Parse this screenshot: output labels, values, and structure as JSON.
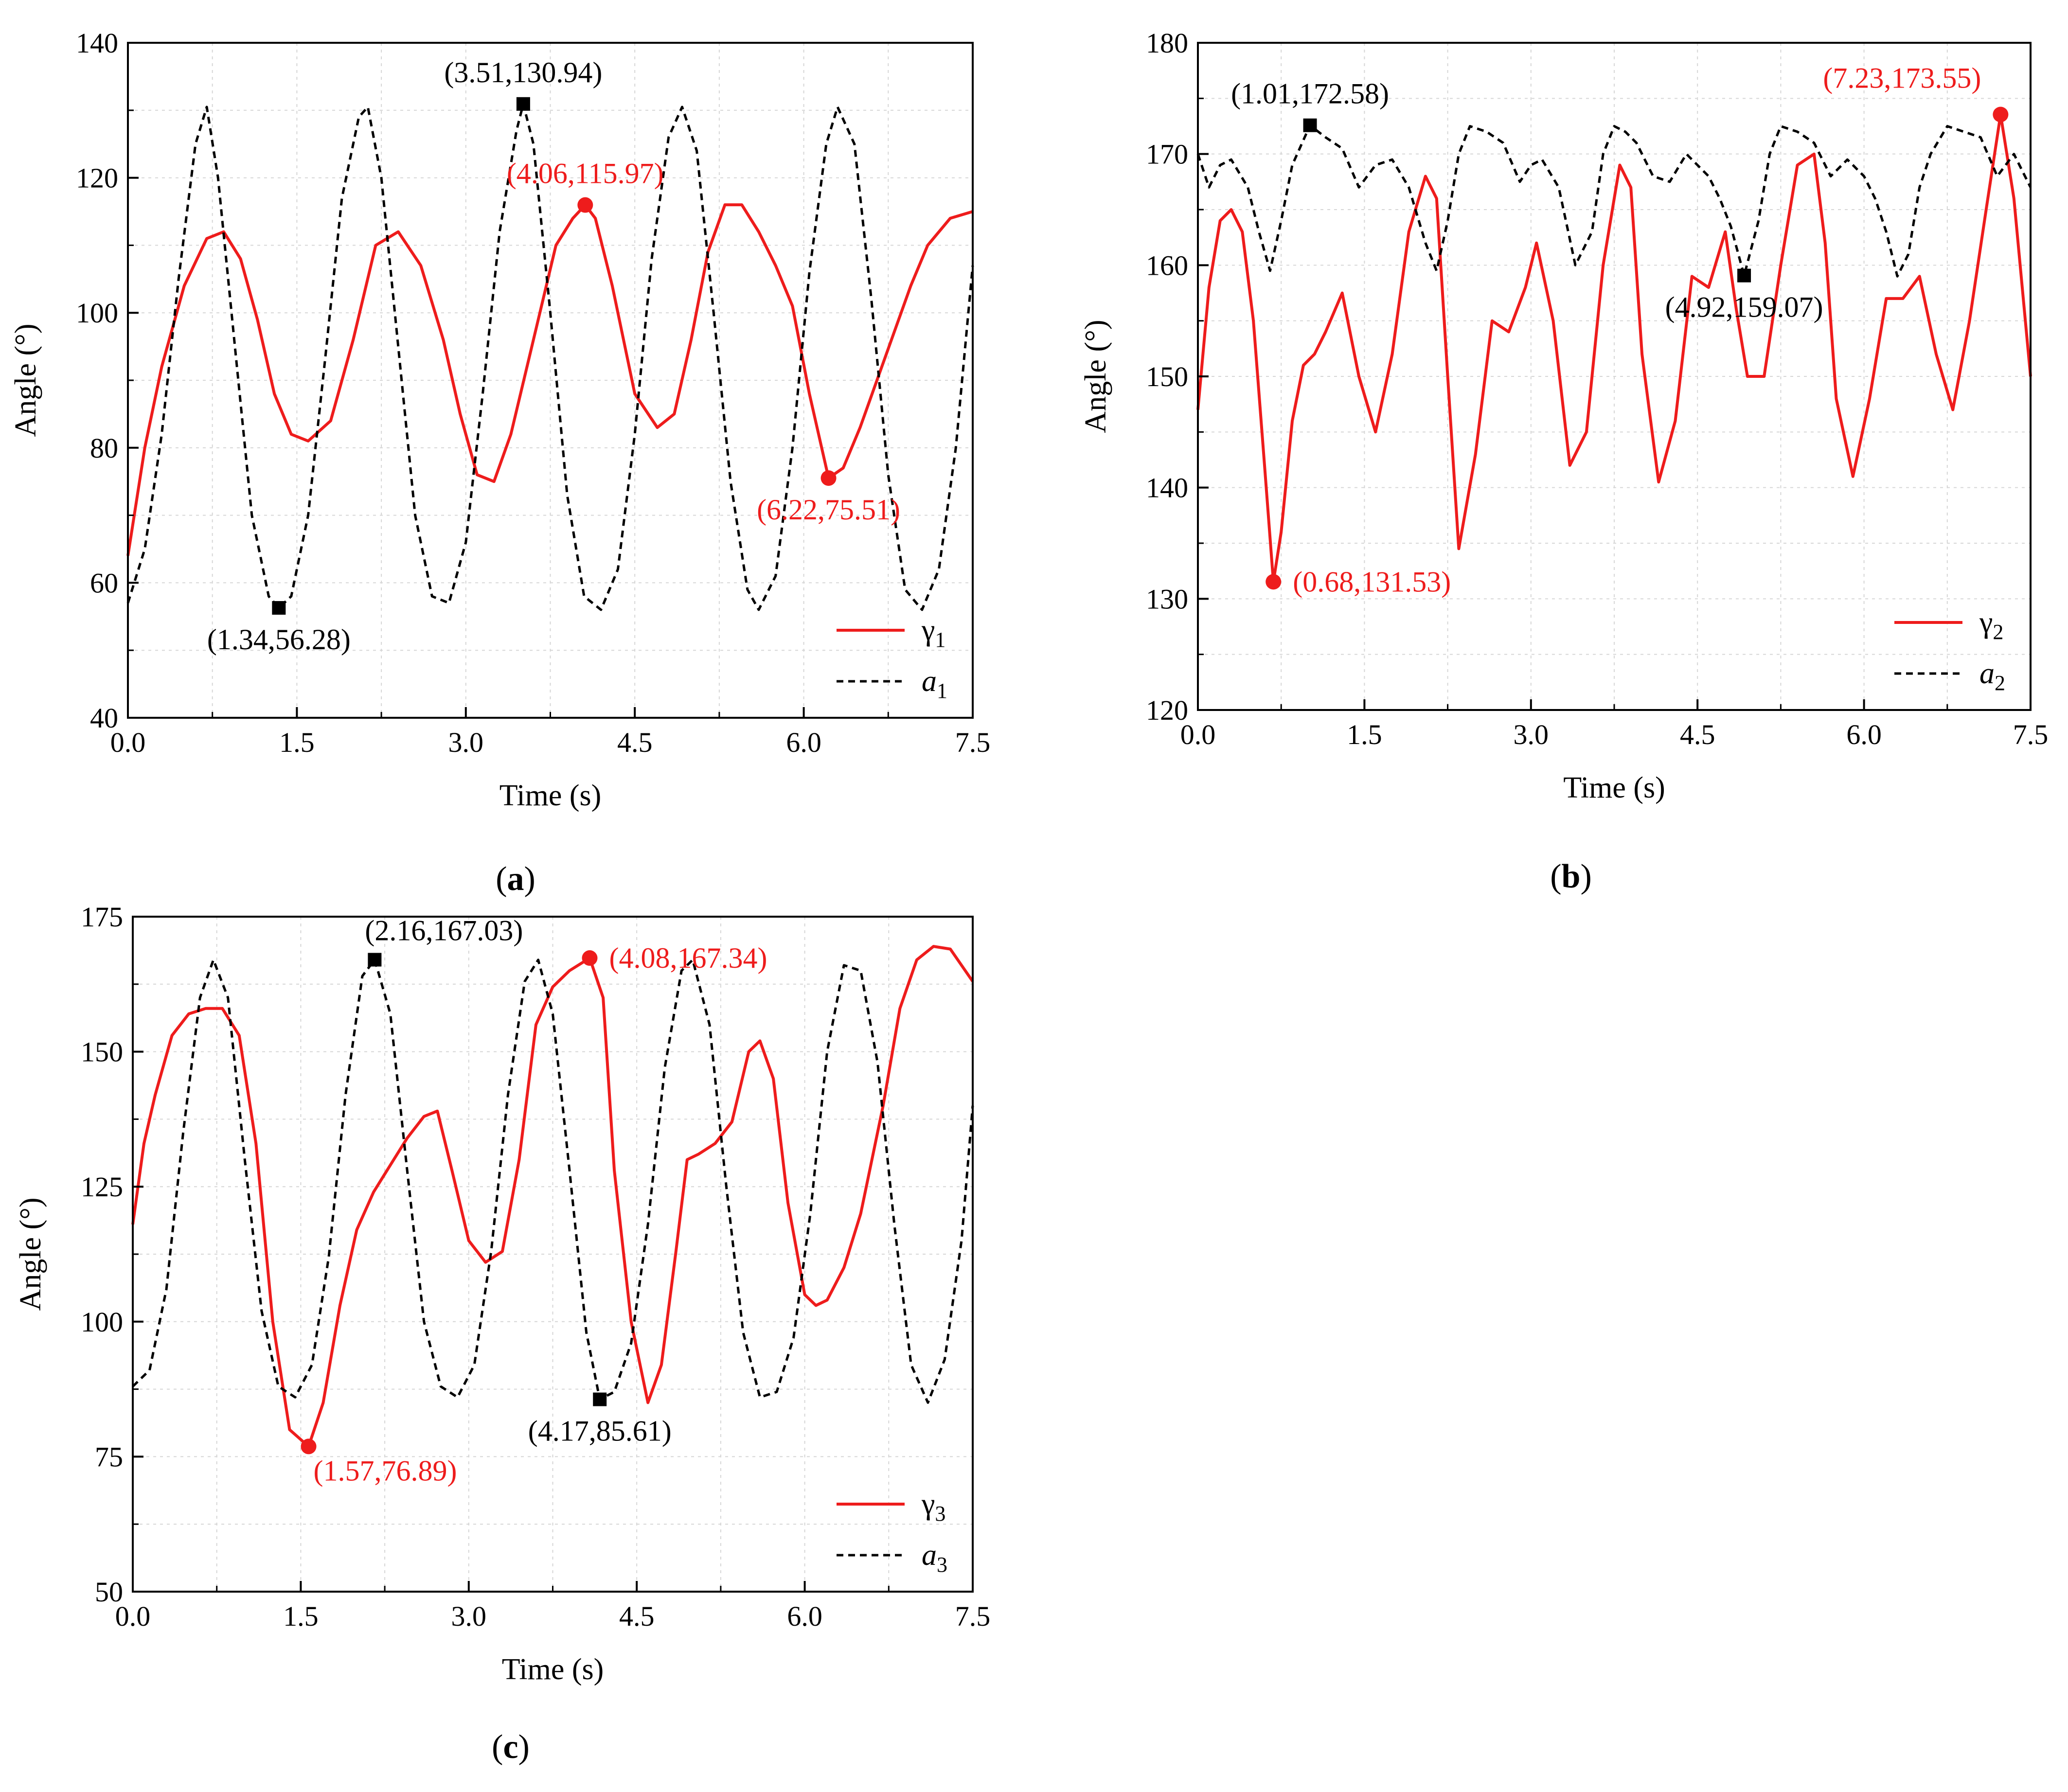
{
  "colors": {
    "red": "#ee1c1c",
    "black": "#000000",
    "grid": "#d6d6d6"
  },
  "chart_data": [
    {
      "type": "line",
      "panel_label": "a",
      "xlabel": "Time (s)",
      "ylabel": "Angle (°)",
      "xlim": [
        0,
        7.5
      ],
      "ylim": [
        40,
        140
      ],
      "xticks": [
        "0.0",
        "1.5",
        "3.0",
        "4.5",
        "6.0",
        "7.5"
      ],
      "yticks": [
        "40",
        "60",
        "80",
        "100",
        "120",
        "140"
      ],
      "series": [
        {
          "name": "γ1",
          "legend_symbol": "γ",
          "legend_sub": "1",
          "style": "solid",
          "color": "#ee1c1c",
          "x": [
            0,
            0.15,
            0.3,
            0.5,
            0.7,
            0.85,
            1.0,
            1.15,
            1.3,
            1.45,
            1.6,
            1.8,
            2.0,
            2.2,
            2.4,
            2.6,
            2.8,
            2.95,
            3.1,
            3.25,
            3.4,
            3.6,
            3.8,
            3.95,
            4.06,
            4.15,
            4.3,
            4.5,
            4.7,
            4.85,
            5.0,
            5.15,
            5.3,
            5.45,
            5.6,
            5.75,
            5.9,
            6.05,
            6.22,
            6.35,
            6.5,
            6.65,
            6.8,
            6.95,
            7.1,
            7.3,
            7.5
          ],
          "y": [
            64,
            80,
            92,
            104,
            111,
            112,
            108,
            99,
            88,
            82,
            81,
            84,
            96,
            110,
            112,
            107,
            96,
            85,
            76,
            75,
            82,
            96,
            110,
            114,
            115.97,
            114,
            104,
            88,
            83,
            85,
            96,
            109,
            116,
            116,
            112,
            107,
            101,
            88,
            75.51,
            77,
            83,
            90,
            97,
            104,
            110,
            114,
            115
          ]
        },
        {
          "name": "a1",
          "legend_symbol": "a",
          "legend_sub": "1",
          "style": "dashed",
          "color": "#000000",
          "x": [
            0,
            0.15,
            0.3,
            0.45,
            0.6,
            0.7,
            0.8,
            0.95,
            1.1,
            1.25,
            1.34,
            1.45,
            1.6,
            1.75,
            1.9,
            2.05,
            2.13,
            2.25,
            2.4,
            2.55,
            2.7,
            2.85,
            3.0,
            3.15,
            3.3,
            3.45,
            3.51,
            3.6,
            3.75,
            3.9,
            4.05,
            4.2,
            4.35,
            4.5,
            4.65,
            4.8,
            4.92,
            5.05,
            5.2,
            5.35,
            5.5,
            5.6,
            5.75,
            5.9,
            6.05,
            6.2,
            6.3,
            6.45,
            6.6,
            6.75,
            6.9,
            7.05,
            7.2,
            7.35,
            7.5
          ],
          "y": [
            57,
            65,
            82,
            105,
            125,
            130.5,
            120,
            95,
            70,
            58,
            56.28,
            58,
            70,
            93,
            117,
            129,
            130.5,
            120,
            95,
            70,
            58,
            57,
            66,
            88,
            112,
            127,
            130.94,
            125,
            100,
            73,
            58,
            56,
            62,
            82,
            108,
            126,
            130.5,
            124,
            100,
            75,
            59,
            56,
            61,
            80,
            106,
            125,
            130.5,
            125,
            102,
            76,
            59,
            56,
            62,
            80,
            107
          ]
        }
      ],
      "markers": [
        {
          "series": "a1",
          "shape": "square",
          "color": "#000000",
          "x": 1.34,
          "y": 56.28,
          "label": "(1.34,56.28)",
          "label_pos": "below"
        },
        {
          "series": "a1",
          "shape": "square",
          "color": "#000000",
          "x": 3.51,
          "y": 130.94,
          "label": "(3.51,130.94)",
          "label_pos": "above"
        },
        {
          "series": "γ1",
          "shape": "circle",
          "color": "#ee1c1c",
          "x": 4.06,
          "y": 115.97,
          "label": "(4.06,115.97)",
          "label_pos": "above"
        },
        {
          "series": "γ1",
          "shape": "circle",
          "color": "#ee1c1c",
          "x": 6.22,
          "y": 75.51,
          "label": "(6.22,75.51)",
          "label_pos": "below"
        }
      ],
      "legend": "bottom-right"
    },
    {
      "type": "line",
      "panel_label": "b",
      "xlabel": "Time (s)",
      "ylabel": "Angle (°)",
      "xlim": [
        0,
        7.5
      ],
      "ylim": [
        120,
        180
      ],
      "xticks": [
        "0.0",
        "1.5",
        "3.0",
        "4.5",
        "6.0",
        "7.5"
      ],
      "yticks": [
        "120",
        "130",
        "140",
        "150",
        "160",
        "170",
        "180"
      ],
      "series": [
        {
          "name": "γ2",
          "legend_symbol": "γ",
          "legend_sub": "2",
          "style": "solid",
          "color": "#ee1c1c",
          "x": [
            0,
            0.1,
            0.2,
            0.3,
            0.4,
            0.5,
            0.6,
            0.68,
            0.75,
            0.85,
            0.95,
            1.05,
            1.15,
            1.3,
            1.45,
            1.6,
            1.75,
            1.9,
            2.05,
            2.15,
            2.25,
            2.35,
            2.5,
            2.65,
            2.8,
            2.95,
            3.05,
            3.2,
            3.35,
            3.5,
            3.65,
            3.8,
            3.9,
            4.0,
            4.15,
            4.3,
            4.45,
            4.6,
            4.75,
            4.85,
            4.95,
            5.1,
            5.25,
            5.4,
            5.55,
            5.65,
            5.75,
            5.9,
            6.05,
            6.2,
            6.35,
            6.5,
            6.65,
            6.8,
            6.95,
            7.1,
            7.23,
            7.35,
            7.5
          ],
          "y": [
            147,
            158,
            164,
            165,
            163,
            155,
            142,
            131.53,
            136,
            146,
            151,
            152,
            154,
            157.5,
            150,
            145,
            152,
            163,
            168,
            166,
            150,
            134.5,
            143,
            155,
            154,
            158,
            162,
            155,
            142,
            145,
            160,
            169,
            167,
            152,
            140.5,
            146,
            159,
            158,
            163,
            156,
            150,
            150,
            160,
            169,
            170,
            162,
            148,
            141,
            148,
            157,
            157,
            159,
            152,
            147,
            155,
            165,
            173.55,
            166,
            150
          ]
        },
        {
          "name": "a2",
          "legend_symbol": "a",
          "legend_sub": "2",
          "style": "dashed",
          "color": "#000000",
          "x": [
            0,
            0.1,
            0.2,
            0.3,
            0.45,
            0.55,
            0.65,
            0.75,
            0.85,
            1.01,
            1.15,
            1.3,
            1.45,
            1.6,
            1.75,
            1.9,
            2.05,
            2.15,
            2.25,
            2.35,
            2.45,
            2.6,
            2.75,
            2.9,
            3.0,
            3.1,
            3.25,
            3.4,
            3.55,
            3.65,
            3.75,
            3.85,
            3.95,
            4.1,
            4.25,
            4.4,
            4.5,
            4.6,
            4.7,
            4.8,
            4.92,
            5.05,
            5.15,
            5.25,
            5.4,
            5.55,
            5.7,
            5.85,
            6.0,
            6.1,
            6.2,
            6.3,
            6.4,
            6.5,
            6.6,
            6.75,
            6.9,
            7.05,
            7.2,
            7.35,
            7.5
          ],
          "y": [
            170,
            167,
            169,
            169.5,
            167,
            163,
            159.5,
            164,
            169,
            172.58,
            171.5,
            170.5,
            167,
            169,
            169.5,
            167,
            162,
            159.5,
            164,
            170,
            172.5,
            172,
            171,
            167.5,
            169,
            169.5,
            167,
            160,
            163,
            170,
            172.5,
            172,
            171,
            168,
            167.5,
            170,
            169,
            168,
            166,
            163.5,
            159.07,
            164,
            170,
            172.5,
            172,
            171,
            168,
            169.5,
            168,
            166,
            163,
            159,
            161,
            167,
            170,
            172.5,
            172,
            171.5,
            168,
            170,
            167
          ]
        }
      ],
      "markers": [
        {
          "series": "a2",
          "shape": "square",
          "color": "#000000",
          "x": 1.01,
          "y": 172.58,
          "label": "(1.01,172.58)",
          "label_pos": "above"
        },
        {
          "series": "a2",
          "shape": "square",
          "color": "#000000",
          "x": 4.92,
          "y": 159.07,
          "label": "(4.92,159.07)",
          "label_pos": "below"
        },
        {
          "series": "γ2",
          "shape": "circle",
          "color": "#ee1c1c",
          "x": 0.68,
          "y": 131.53,
          "label": "(0.68,131.53)",
          "label_pos": "right"
        },
        {
          "series": "γ2",
          "shape": "circle",
          "color": "#ee1c1c",
          "x": 7.23,
          "y": 173.55,
          "label": "(7.23,173.55)",
          "label_pos": "above-left"
        }
      ],
      "legend": "bottom-right"
    },
    {
      "type": "line",
      "panel_label": "c",
      "xlabel": "Time (s)",
      "ylabel": "Angle (°)",
      "xlim": [
        0,
        7.5
      ],
      "ylim": [
        50,
        175
      ],
      "xticks": [
        "0.0",
        "1.5",
        "3.0",
        "4.5",
        "6.0",
        "7.5"
      ],
      "yticks": [
        "50",
        "75",
        "100",
        "125",
        "150",
        "175"
      ],
      "series": [
        {
          "name": "γ3",
          "legend_symbol": "γ",
          "legend_sub": "3",
          "style": "solid",
          "color": "#ee1c1c",
          "x": [
            0,
            0.1,
            0.2,
            0.35,
            0.5,
            0.65,
            0.8,
            0.95,
            1.1,
            1.25,
            1.4,
            1.57,
            1.7,
            1.85,
            2.0,
            2.15,
            2.3,
            2.45,
            2.6,
            2.72,
            2.85,
            3.0,
            3.15,
            3.3,
            3.45,
            3.6,
            3.75,
            3.9,
            4.08,
            4.2,
            4.3,
            4.45,
            4.6,
            4.72,
            4.85,
            4.95,
            5.05,
            5.2,
            5.35,
            5.5,
            5.6,
            5.72,
            5.85,
            6.0,
            6.1,
            6.2,
            6.35,
            6.5,
            6.7,
            6.85,
            7.0,
            7.15,
            7.3,
            7.5
          ],
          "y": [
            118,
            133,
            142,
            153,
            157,
            158,
            158,
            153,
            133,
            100,
            80,
            76.89,
            85,
            103,
            117,
            124,
            129,
            134,
            138,
            139,
            128,
            115,
            111,
            113,
            130,
            155,
            162,
            165,
            167.34,
            160,
            128,
            100,
            85,
            92,
            113,
            130,
            131,
            133,
            137,
            150,
            152,
            145,
            122,
            105,
            103,
            104,
            110,
            120,
            140,
            158,
            167,
            169.5,
            169,
            163
          ]
        },
        {
          "name": "a3",
          "legend_symbol": "a",
          "legend_sub": "3",
          "style": "dashed",
          "color": "#000000",
          "x": [
            0,
            0.15,
            0.3,
            0.45,
            0.6,
            0.72,
            0.85,
            1.0,
            1.15,
            1.3,
            1.45,
            1.6,
            1.75,
            1.9,
            2.05,
            2.16,
            2.3,
            2.45,
            2.6,
            2.75,
            2.9,
            3.05,
            3.2,
            3.35,
            3.5,
            3.62,
            3.75,
            3.9,
            4.05,
            4.17,
            4.3,
            4.45,
            4.6,
            4.75,
            4.9,
            5.0,
            5.15,
            5.3,
            5.45,
            5.6,
            5.75,
            5.9,
            6.05,
            6.2,
            6.35,
            6.5,
            6.65,
            6.8,
            6.95,
            7.1,
            7.25,
            7.4,
            7.5
          ],
          "y": [
            88,
            91,
            106,
            135,
            160,
            167,
            160,
            130,
            102,
            88,
            86,
            92,
            112,
            142,
            164,
            167.03,
            157,
            128,
            100,
            88,
            86,
            92,
            113,
            142,
            163,
            167,
            157,
            128,
            98,
            85.61,
            87,
            96,
            118,
            147,
            165,
            167,
            155,
            125,
            98,
            86,
            87,
            97,
            120,
            150,
            166,
            165,
            148,
            118,
            92,
            85,
            93,
            115,
            140
          ]
        }
      ],
      "markers": [
        {
          "series": "a3",
          "shape": "square",
          "color": "#000000",
          "x": 2.16,
          "y": 167.03,
          "label": "(2.16,167.03)",
          "label_pos": "above-right"
        },
        {
          "series": "a3",
          "shape": "square",
          "color": "#000000",
          "x": 4.17,
          "y": 85.61,
          "label": "(4.17,85.61)",
          "label_pos": "below"
        },
        {
          "series": "γ3",
          "shape": "circle",
          "color": "#ee1c1c",
          "x": 1.57,
          "y": 76.89,
          "label": "(1.57,76.89)",
          "label_pos": "below-right"
        },
        {
          "series": "γ3",
          "shape": "circle",
          "color": "#ee1c1c",
          "x": 4.08,
          "y": 167.34,
          "label": "(4.08,167.34)",
          "label_pos": "right"
        }
      ],
      "legend": "bottom-right"
    }
  ]
}
